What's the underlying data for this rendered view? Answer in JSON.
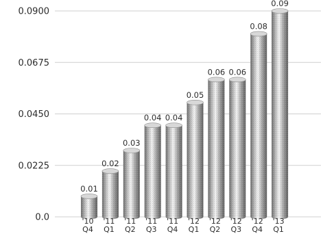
{
  "chart_data": {
    "type": "bar",
    "title": "",
    "xlabel": "",
    "ylabel": "",
    "categories": [
      [
        "'10",
        "Q4"
      ],
      [
        "'11",
        "Q1"
      ],
      [
        "'11",
        "Q2"
      ],
      [
        "'11",
        "Q3"
      ],
      [
        "'11",
        "Q4"
      ],
      [
        "'12",
        "Q1"
      ],
      [
        "'12",
        "Q2"
      ],
      [
        "'12",
        "Q3"
      ],
      [
        "'12",
        "Q4"
      ],
      [
        "'13",
        "Q1"
      ]
    ],
    "values": [
      0.009,
      0.02,
      0.029,
      0.04,
      0.04,
      0.05,
      0.06,
      0.06,
      0.08,
      0.09
    ],
    "value_labels": [
      "0.01",
      "0.02",
      "0.03",
      "0.04",
      "0.04",
      "0.05",
      "0.06",
      "0.06",
      "0.08",
      "0.09"
    ],
    "ylim": [
      0,
      0.09
    ],
    "yticks": [
      0,
      0.0225,
      0.045,
      0.0675,
      0.09
    ],
    "ytick_labels": [
      "0.0",
      "0.0225",
      "0.0450",
      "0.0675",
      "0.0900"
    ],
    "grid": true,
    "legend": "none",
    "style": "3d-cylinder",
    "colors": {
      "bar_light": "#f4f4f4",
      "bar_mid": "#b5b5b5",
      "bar_dark": "#6b6b6b",
      "bar_top": "#d8d8d8",
      "grid": "#cfcfcf",
      "axis": "#9a9a9a"
    }
  }
}
